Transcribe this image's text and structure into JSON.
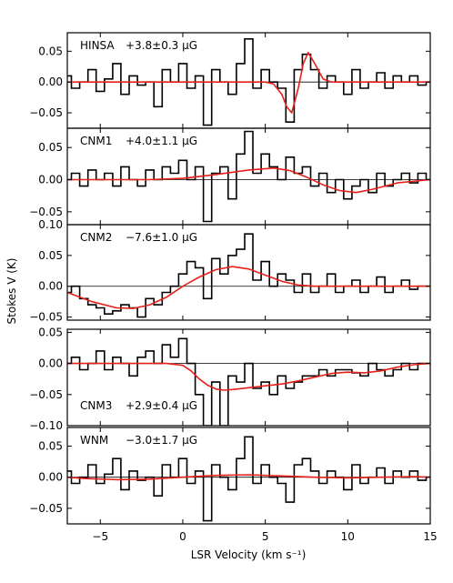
{
  "chart_data": {
    "type": "line",
    "xlabel": "LSR Velocity (km s⁻¹)",
    "ylabel": "Stokes V (K)",
    "xlim": [
      -7,
      15
    ],
    "xticks": [
      -5,
      0,
      5,
      10,
      15
    ],
    "xtick_labels": [
      "−5",
      "0",
      "5",
      "10",
      "15"
    ],
    "panels": [
      {
        "label": "HINSA",
        "field": "+3.8±0.3 μG",
        "ylim": [
          -0.075,
          0.08
        ],
        "yticks": [
          0.05,
          0.0,
          -0.05
        ],
        "ytick_labels": [
          "0.05",
          "0.00",
          "−0.05"
        ],
        "data_x": [
          -7.0,
          -6.5,
          -6.0,
          -5.5,
          -5.0,
          -4.5,
          -4.0,
          -3.5,
          -3.0,
          -2.5,
          -2.0,
          -1.5,
          -1.0,
          -0.5,
          0.0,
          0.5,
          1.0,
          1.5,
          2.0,
          2.5,
          3.0,
          3.5,
          4.0,
          4.5,
          5.0,
          5.5,
          6.0,
          6.5,
          7.0,
          7.5,
          8.0,
          8.5,
          9.0,
          9.5,
          10.0,
          10.5,
          11.0,
          11.5,
          12.0,
          12.5,
          13.0,
          13.5,
          14.0,
          14.5,
          15.0
        ],
        "data_y": [
          0.01,
          -0.01,
          0.0,
          0.02,
          -0.015,
          0.005,
          0.03,
          -0.02,
          0.01,
          -0.005,
          0.0,
          -0.04,
          0.02,
          0.0,
          0.03,
          -0.01,
          0.01,
          -0.07,
          0.02,
          0.0,
          -0.02,
          0.03,
          0.07,
          -0.01,
          0.02,
          0.0,
          -0.01,
          -0.065,
          0.02,
          0.045,
          0.02,
          -0.01,
          0.01,
          0.0,
          -0.02,
          0.02,
          -0.01,
          0.0,
          0.015,
          -0.01,
          0.01,
          0.0,
          0.01,
          -0.005,
          0.0
        ],
        "fit_x": [
          -7.0,
          5.0,
          5.5,
          6.0,
          6.3,
          6.6,
          7.0,
          7.3,
          7.6,
          8.0,
          8.5,
          9.0,
          15.0
        ],
        "fit_y": [
          0.0,
          0.0,
          -0.003,
          -0.02,
          -0.04,
          -0.05,
          -0.01,
          0.03,
          0.048,
          0.03,
          0.005,
          0.0,
          0.0
        ]
      },
      {
        "label": "CNM1",
        "field": "+4.0±1.1 μG",
        "ylim": [
          -0.07,
          0.08
        ],
        "yticks": [
          0.05,
          0.0,
          -0.05
        ],
        "ytick_labels": [
          "0.05",
          "0.00",
          "−0.05"
        ],
        "data_x": [
          -7.0,
          -6.5,
          -6.0,
          -5.5,
          -5.0,
          -4.5,
          -4.0,
          -3.5,
          -3.0,
          -2.5,
          -2.0,
          -1.5,
          -1.0,
          -0.5,
          0.0,
          0.5,
          1.0,
          1.5,
          2.0,
          2.5,
          3.0,
          3.5,
          4.0,
          4.5,
          5.0,
          5.5,
          6.0,
          6.5,
          7.0,
          7.5,
          8.0,
          8.5,
          9.0,
          9.5,
          10.0,
          10.5,
          11.0,
          11.5,
          12.0,
          12.5,
          13.0,
          13.5,
          14.0,
          14.5,
          15.0
        ],
        "data_y": [
          0.0,
          0.01,
          -0.01,
          0.015,
          0.0,
          0.01,
          -0.01,
          0.02,
          0.0,
          -0.01,
          0.015,
          0.0,
          0.02,
          0.01,
          0.03,
          0.0,
          0.02,
          -0.065,
          0.01,
          0.02,
          -0.03,
          0.04,
          0.075,
          0.01,
          0.04,
          0.02,
          0.0,
          0.035,
          0.01,
          0.02,
          -0.01,
          0.01,
          -0.02,
          0.0,
          -0.03,
          -0.01,
          0.0,
          -0.02,
          0.01,
          -0.01,
          0.0,
          0.01,
          -0.005,
          0.01,
          0.0
        ],
        "fit_x": [
          -7.0,
          -2.0,
          0.0,
          2.0,
          4.0,
          5.5,
          6.5,
          7.5,
          8.5,
          9.5,
          10.5,
          11.5,
          13.0,
          15.0
        ],
        "fit_y": [
          0.0,
          0.0,
          0.002,
          0.008,
          0.015,
          0.018,
          0.014,
          0.004,
          -0.008,
          -0.017,
          -0.02,
          -0.015,
          -0.005,
          0.0
        ]
      },
      {
        "label": "CNM2",
        "field": "−7.6±1.0 μG",
        "ylim": [
          -0.055,
          0.1
        ],
        "yticks": [
          0.1,
          0.05,
          0.0,
          -0.05
        ],
        "ytick_labels": [
          "0.10",
          "0.05",
          "0.00",
          "−0.05"
        ],
        "data_x": [
          -7.0,
          -6.5,
          -6.0,
          -5.5,
          -5.0,
          -4.5,
          -4.0,
          -3.5,
          -3.0,
          -2.5,
          -2.0,
          -1.5,
          -1.0,
          -0.5,
          0.0,
          0.5,
          1.0,
          1.5,
          2.0,
          2.5,
          3.0,
          3.5,
          4.0,
          4.5,
          5.0,
          5.5,
          6.0,
          6.5,
          7.0,
          7.5,
          8.0,
          8.5,
          9.0,
          9.5,
          10.0,
          10.5,
          11.0,
          11.5,
          12.0,
          12.5,
          13.0,
          13.5,
          14.0,
          14.5,
          15.0
        ],
        "data_y": [
          -0.01,
          0.0,
          -0.02,
          -0.03,
          -0.035,
          -0.045,
          -0.04,
          -0.03,
          -0.035,
          -0.05,
          -0.02,
          -0.03,
          -0.01,
          0.0,
          0.02,
          0.04,
          0.03,
          -0.02,
          0.045,
          0.02,
          0.05,
          0.06,
          0.085,
          0.01,
          0.04,
          0.0,
          0.02,
          0.01,
          -0.01,
          0.02,
          -0.01,
          0.0,
          0.02,
          -0.01,
          0.0,
          0.01,
          -0.01,
          0.0,
          0.015,
          -0.01,
          0.0,
          0.01,
          -0.005,
          0.0,
          0.0
        ],
        "fit_x": [
          -7.0,
          -5.5,
          -4.0,
          -3.0,
          -2.0,
          -1.0,
          0.0,
          1.0,
          2.0,
          3.0,
          4.0,
          5.0,
          6.0,
          7.0,
          8.0,
          10.0,
          15.0
        ],
        "fit_y": [
          -0.01,
          -0.025,
          -0.035,
          -0.036,
          -0.03,
          -0.018,
          0.0,
          0.015,
          0.027,
          0.032,
          0.028,
          0.018,
          0.008,
          0.002,
          0.0,
          0.0,
          0.0
        ]
      },
      {
        "label": "CNM3",
        "field": "+2.9±0.4 μG",
        "ylim": [
          -0.1,
          0.055
        ],
        "yticks": [
          0.05,
          0.0,
          -0.05,
          -0.1
        ],
        "ytick_labels": [
          "0.05",
          "0.00",
          "−0.05",
          "−0.10"
        ],
        "data_x": [
          -7.0,
          -6.5,
          -6.0,
          -5.5,
          -5.0,
          -4.5,
          -4.0,
          -3.5,
          -3.0,
          -2.5,
          -2.0,
          -1.5,
          -1.0,
          -0.5,
          0.0,
          0.5,
          1.0,
          1.5,
          2.0,
          2.5,
          3.0,
          3.5,
          4.0,
          4.5,
          5.0,
          5.5,
          6.0,
          6.5,
          7.0,
          7.5,
          8.0,
          8.5,
          9.0,
          9.5,
          10.0,
          10.5,
          11.0,
          11.5,
          12.0,
          12.5,
          13.0,
          13.5,
          14.0,
          14.5,
          15.0
        ],
        "data_y": [
          0.0,
          0.01,
          -0.01,
          0.0,
          0.02,
          -0.01,
          0.01,
          0.0,
          -0.02,
          0.01,
          0.02,
          0.0,
          0.03,
          0.01,
          0.04,
          0.0,
          -0.05,
          -0.1,
          -0.03,
          -0.1,
          -0.02,
          -0.03,
          0.0,
          -0.04,
          -0.03,
          -0.05,
          -0.02,
          -0.04,
          -0.03,
          -0.02,
          -0.02,
          -0.01,
          -0.02,
          -0.01,
          -0.01,
          -0.015,
          -0.02,
          0.0,
          -0.01,
          -0.02,
          -0.01,
          0.0,
          -0.01,
          0.0,
          0.0
        ],
        "fit_x": [
          -7.0,
          -1.0,
          0.0,
          0.5,
          1.0,
          1.5,
          2.0,
          2.5,
          3.0,
          4.0,
          5.0,
          6.0,
          7.0,
          8.0,
          9.0,
          10.0,
          11.0,
          12.0,
          13.0,
          14.0,
          15.0
        ],
        "fit_y": [
          0.0,
          0.0,
          -0.003,
          -0.012,
          -0.025,
          -0.035,
          -0.041,
          -0.043,
          -0.042,
          -0.039,
          -0.036,
          -0.033,
          -0.028,
          -0.022,
          -0.016,
          -0.014,
          -0.015,
          -0.012,
          -0.006,
          -0.002,
          0.0
        ]
      },
      {
        "label": "WNM",
        "field": "−3.0±1.7 μG",
        "ylim": [
          -0.075,
          0.08
        ],
        "yticks": [
          0.05,
          0.0,
          -0.05
        ],
        "ytick_labels": [
          "0.05",
          "0.00",
          "−0.05"
        ],
        "data_x": [
          -7.0,
          -6.5,
          -6.0,
          -5.5,
          -5.0,
          -4.5,
          -4.0,
          -3.5,
          -3.0,
          -2.5,
          -2.0,
          -1.5,
          -1.0,
          -0.5,
          0.0,
          0.5,
          1.0,
          1.5,
          2.0,
          2.5,
          3.0,
          3.5,
          4.0,
          4.5,
          5.0,
          5.5,
          6.0,
          6.5,
          7.0,
          7.5,
          8.0,
          8.5,
          9.0,
          9.5,
          10.0,
          10.5,
          11.0,
          11.5,
          12.0,
          12.5,
          13.0,
          13.5,
          14.0,
          14.5,
          15.0
        ],
        "data_y": [
          0.01,
          -0.01,
          0.0,
          0.02,
          -0.01,
          0.005,
          0.03,
          -0.02,
          0.01,
          -0.005,
          0.0,
          -0.03,
          0.02,
          0.0,
          0.03,
          -0.01,
          0.01,
          -0.07,
          0.02,
          0.0,
          -0.02,
          0.03,
          0.065,
          -0.01,
          0.02,
          0.0,
          -0.01,
          -0.04,
          0.02,
          0.03,
          0.01,
          -0.01,
          0.01,
          0.0,
          -0.02,
          0.02,
          -0.01,
          0.0,
          0.015,
          -0.01,
          0.01,
          0.0,
          0.01,
          -0.005,
          0.0
        ],
        "fit_x": [
          -7.0,
          -6.0,
          -4.0,
          -2.0,
          0.0,
          2.0,
          4.0,
          6.0,
          8.0,
          10.0,
          12.0,
          14.0,
          15.0
        ],
        "fit_y": [
          0.0,
          -0.002,
          -0.004,
          -0.003,
          0.0,
          0.003,
          0.004,
          0.002,
          0.0,
          -0.001,
          0.0,
          0.001,
          0.0
        ]
      }
    ]
  },
  "colors": {
    "data_line": "#000000",
    "fit_line": "#e8201a",
    "zero_line": "#000000"
  }
}
